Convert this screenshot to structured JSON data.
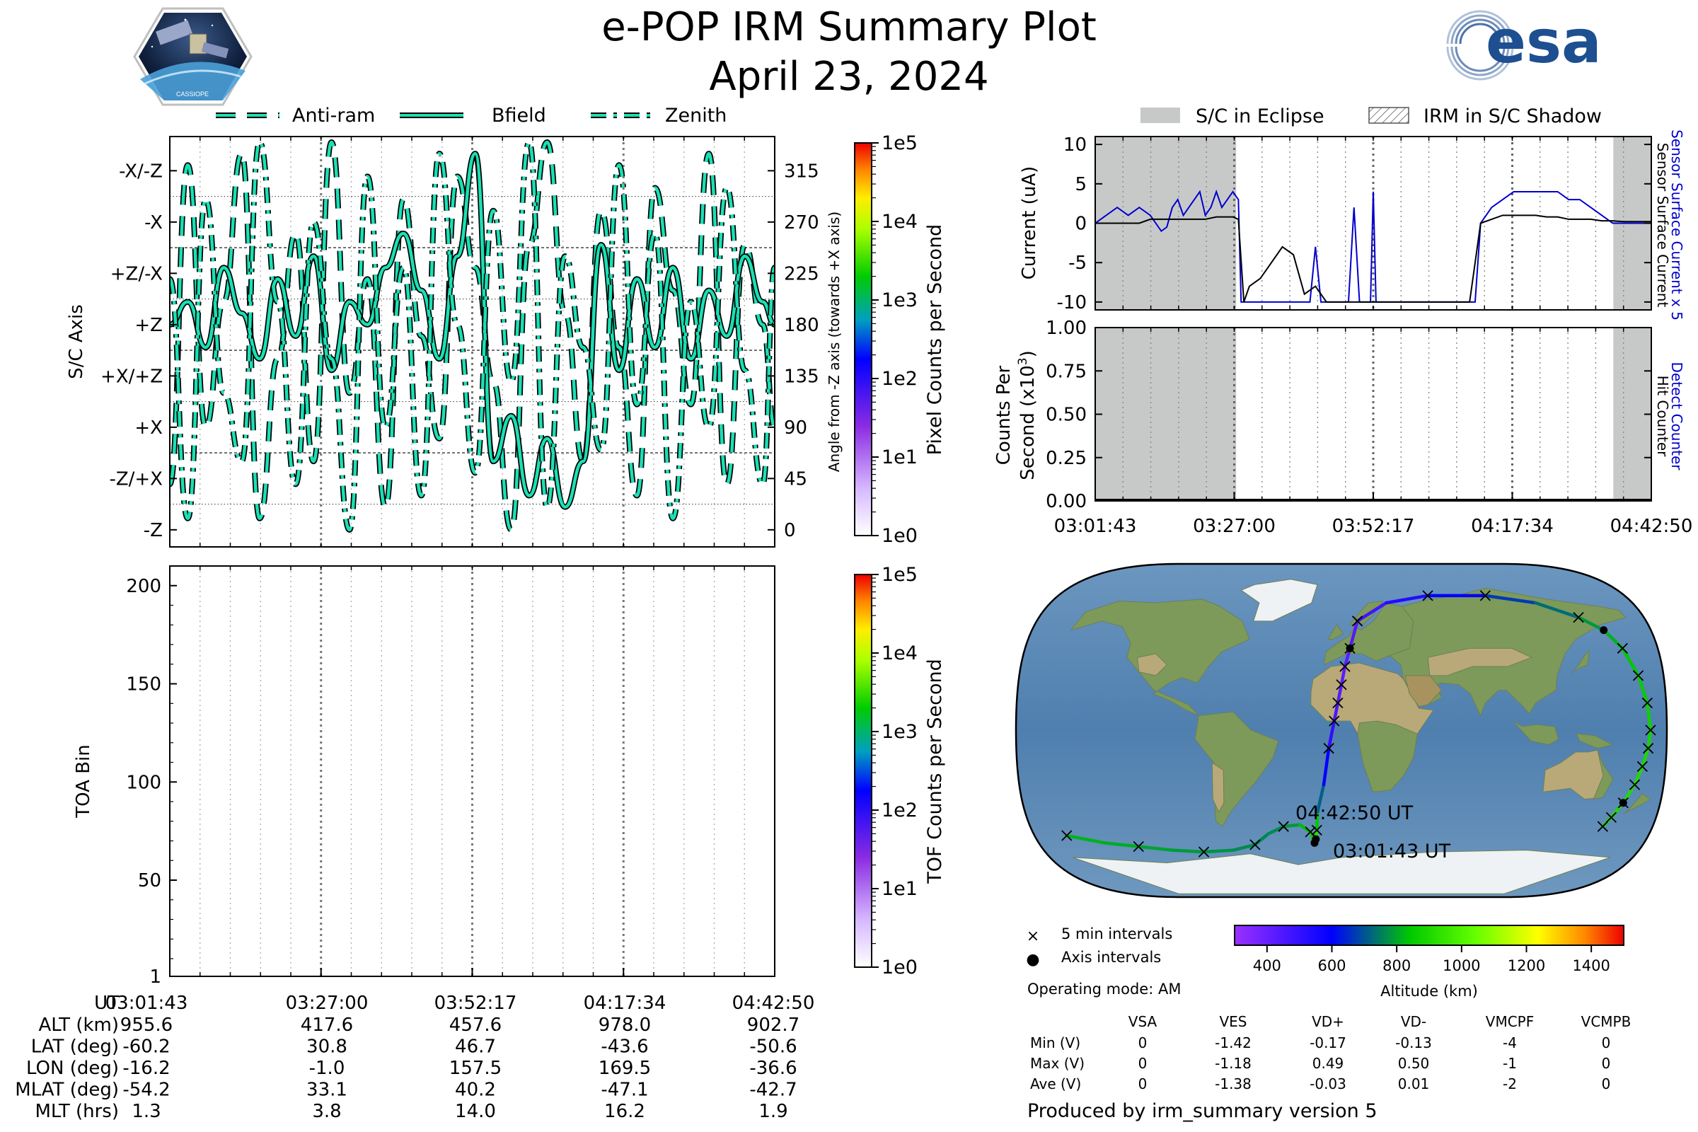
{
  "header": {
    "title": "e-POP IRM Summary Plot",
    "date": "April 23, 2024",
    "left_logo_text": "CASSIOPE",
    "right_logo_text": "esa"
  },
  "time_ticks": [
    "03:01:43",
    "03:27:00",
    "03:52:17",
    "04:17:34",
    "04:42:50"
  ],
  "chart_data": [
    {
      "id": "pixel-panel",
      "type": "line",
      "legend": [
        "Anti-ram",
        "Bfield",
        "Zenith"
      ],
      "legend_placement": "top",
      "ylabel": "S/C Axis",
      "yticklabels_left": [
        "-X/-Z",
        "-X",
        "+Z/-X",
        "+Z",
        "+X/+Z",
        "+X",
        "-Z/+X",
        "-Z"
      ],
      "ylabel_right": "Angle from -Z axis (towards +X axis)",
      "yticklabels_right": [
        "315",
        "270",
        "225",
        "180",
        "135",
        "90",
        "45",
        "0"
      ],
      "ylim": [
        -15,
        345
      ],
      "colorbar": {
        "label": "Pixel Counts per Second",
        "ticks": [
          "1e5",
          "1e4",
          "1e3",
          "1e2",
          "1e1",
          "1e0"
        ]
      },
      "series": [
        {
          "name": "Anti-ram",
          "x": [
            0,
            3,
            6,
            9,
            12,
            15,
            18,
            21,
            24,
            27,
            30,
            33,
            36,
            39,
            42,
            45,
            48,
            51,
            54,
            57,
            60,
            63,
            66,
            69,
            72,
            75,
            78,
            81,
            84,
            87,
            90,
            93,
            96,
            99,
            101
          ],
          "values": [
            40,
            320,
            90,
            200,
            330,
            10,
            150,
            260,
            60,
            340,
            120,
            220,
            20,
            290,
            170,
            80,
            310,
            230,
            130,
            0,
            250,
            340,
            190,
            60,
            280,
            160,
            30,
            300,
            210,
            110,
            330,
            40,
            250,
            180,
            90
          ]
        },
        {
          "name": "Bfield",
          "x": [
            0,
            3,
            6,
            9,
            12,
            15,
            18,
            21,
            24,
            27,
            30,
            33,
            36,
            39,
            42,
            45,
            48,
            51,
            54,
            57,
            60,
            63,
            66,
            69,
            72,
            75,
            78,
            81,
            84,
            87,
            90,
            93,
            96,
            99,
            101
          ],
          "values": [
            180,
            200,
            160,
            230,
            190,
            150,
            220,
            170,
            240,
            140,
            200,
            180,
            230,
            260,
            210,
            150,
            240,
            330,
            60,
            100,
            30,
            80,
            20,
            60,
            250,
            140,
            220,
            160,
            230,
            150,
            210,
            170,
            240,
            200,
            180
          ]
        },
        {
          "name": "Zenith",
          "x": [
            0,
            3,
            6,
            9,
            12,
            15,
            18,
            21,
            24,
            27,
            30,
            33,
            36,
            39,
            42,
            45,
            48,
            51,
            54,
            57,
            60,
            63,
            66,
            69,
            72,
            75,
            78,
            81,
            84,
            87,
            90,
            93,
            96,
            99,
            101
          ],
          "values": [
            220,
            10,
            290,
            120,
            60,
            340,
            200,
            40,
            270,
            150,
            0,
            310,
            90,
            230,
            30,
            330,
            180,
            50,
            280,
            130,
            340,
            20,
            240,
            160,
            70,
            320,
            110,
            260,
            10,
            200,
            90,
            300,
            140,
            40,
            230
          ]
        }
      ]
    },
    {
      "id": "tof-panel",
      "type": "heatmap",
      "ylabel": "TOA Bin",
      "yticks": [
        1,
        50,
        100,
        150,
        200
      ],
      "ylim": [
        1,
        210
      ],
      "colorbar": {
        "label": "TOF Counts per Second",
        "ticks": [
          "1e5",
          "1e4",
          "1e3",
          "1e2",
          "1e1",
          "1e0"
        ]
      },
      "values": []
    },
    {
      "id": "current-panel",
      "type": "line",
      "legend": [
        "S/C in Eclipse",
        "IRM in S/C Shadow"
      ],
      "legend_placement": "top",
      "ylabel": "Current (uA)",
      "ylabel_right_blue": "Sensor Surface Current x 5",
      "ylabel_right_black": "Sensor Surface Current",
      "yticks": [
        10,
        5,
        0,
        -5,
        -10
      ],
      "ylim": [
        -11,
        11
      ],
      "eclipse": [
        [
          0,
          25.6
        ],
        [
          94.1,
          101
        ]
      ],
      "series": [
        {
          "name": "Sensor Surface Current x 5",
          "color": "#0000cc",
          "x": [
            0,
            2,
            4,
            6,
            8,
            10,
            12,
            13,
            14,
            15,
            16,
            17,
            18,
            19,
            20,
            21,
            22,
            23,
            24,
            25,
            26,
            26.5,
            27,
            28,
            30,
            32,
            34,
            36,
            38,
            39,
            40,
            41,
            42,
            43,
            44,
            45,
            46,
            47,
            48,
            49,
            50,
            50.5,
            51,
            52,
            54,
            56,
            58,
            60,
            62,
            64,
            65,
            66,
            67,
            68,
            69,
            70,
            72,
            74,
            76,
            78,
            80,
            82,
            84,
            86,
            88,
            90,
            92,
            94,
            96,
            98,
            100,
            101
          ],
          "values": [
            0,
            1,
            2,
            1,
            2,
            1,
            -1,
            -0.5,
            2,
            3,
            1,
            2,
            3,
            4,
            1,
            2,
            4,
            2,
            3,
            4,
            3,
            -10,
            -10,
            -10,
            -10,
            -10,
            -10,
            -10,
            -10,
            -10,
            -3,
            -10,
            -10,
            -10,
            -10,
            -10,
            -10,
            2,
            -10,
            -10,
            -10,
            4,
            -10,
            -10,
            -10,
            -10,
            -10,
            -10,
            -10,
            -10,
            -10,
            -10,
            -10,
            -10,
            -10,
            0,
            2,
            3,
            4,
            4,
            4,
            4,
            4,
            3,
            3,
            2,
            1,
            0,
            0,
            0,
            0,
            0
          ]
        },
        {
          "name": "Sensor Surface Current",
          "color": "#000000",
          "x": [
            0,
            2,
            4,
            6,
            8,
            10,
            12,
            14,
            16,
            18,
            20,
            22,
            24,
            25,
            26,
            27,
            28,
            30,
            32,
            34,
            36,
            38,
            40,
            42,
            44,
            46,
            48,
            50,
            52,
            54,
            56,
            58,
            60,
            62,
            64,
            66,
            68,
            70,
            72,
            74,
            76,
            78,
            80,
            82,
            84,
            86,
            88,
            90,
            92,
            94,
            96,
            98,
            100,
            101
          ],
          "values": [
            0,
            0,
            0,
            0,
            0,
            0.5,
            0.5,
            0.5,
            0.5,
            0.5,
            0.5,
            0.8,
            0.8,
            0.8,
            0.5,
            -10,
            -8,
            -7,
            -5,
            -3,
            -4,
            -9,
            -8,
            -10,
            -10,
            -10,
            -10,
            -10,
            -10,
            -10,
            -10,
            -10,
            -10,
            -10,
            -10,
            -10,
            -10,
            0,
            0.5,
            1,
            1,
            1,
            1,
            0.8,
            0.8,
            0.5,
            0.5,
            0.5,
            0.3,
            0.3,
            0.2,
            0.2,
            0.2,
            0.2
          ]
        }
      ]
    },
    {
      "id": "counts-panel",
      "type": "line",
      "ylabel": "Counts Per Second (x10^3)",
      "ylabel_right_blue": "Detect Counter",
      "ylabel_right_black": "Hit Counter",
      "yticks": [
        "1.00",
        "0.75",
        "0.50",
        "0.25",
        "0.00"
      ],
      "ylim": [
        0,
        1
      ],
      "eclipse": [
        [
          0,
          25.6
        ],
        [
          94.1,
          101
        ]
      ],
      "series": [
        {
          "name": "Detect Counter",
          "color": "#0000cc",
          "x": [
            0,
            101
          ],
          "values": [
            0,
            0
          ]
        },
        {
          "name": "Hit Counter",
          "color": "#000000",
          "x": [
            0,
            101
          ],
          "values": [
            0,
            0
          ]
        }
      ]
    }
  ],
  "map": {
    "legend": [
      {
        "marker": "×",
        "label": "5 min intervals"
      },
      {
        "marker": "●",
        "label": "Axis intervals"
      }
    ],
    "operating_mode": "Operating mode: AM",
    "start_label": "03:01:43 UT",
    "end_label": "04:42:50 UT",
    "colorbar": {
      "label": "Altitude (km)",
      "ticks": [
        "400",
        "600",
        "800",
        "1000",
        "1200",
        "1400"
      ],
      "range": [
        300,
        1500
      ]
    },
    "track_lon": [
      -170,
      -150,
      -130,
      -110,
      -90,
      -70,
      -55,
      -45,
      -35,
      -25,
      -19,
      -17,
      -16,
      -15,
      -14,
      -10,
      -7,
      -4,
      -2,
      0,
      2,
      5,
      10,
      30,
      60,
      100,
      130,
      150,
      160,
      165,
      168,
      170,
      171,
      170,
      168,
      166,
      163,
      160,
      158
    ],
    "track_lat": [
      -58,
      -62,
      -64,
      -66,
      -67,
      -66,
      -63,
      -57,
      -53,
      -52,
      -56,
      -62,
      -60,
      -55,
      -45,
      -30,
      -10,
      5,
      15,
      25,
      35,
      45,
      60,
      70,
      74,
      74,
      70,
      62,
      55,
      45,
      30,
      15,
      0,
      -10,
      -20,
      -30,
      -40,
      -48,
      -53
    ],
    "track_alt": [
      820,
      810,
      800,
      790,
      780,
      770,
      760,
      760,
      770,
      800,
      850,
      900,
      955,
      900,
      780,
      650,
      540,
      480,
      440,
      420,
      418,
      430,
      450,
      500,
      560,
      640,
      700,
      760,
      800,
      830,
      850,
      860,
      880,
      890,
      900,
      905,
      905,
      903,
      902
    ]
  },
  "info_table": {
    "row_header": "UT",
    "rows": [
      {
        "label": "ALT (km)",
        "values": [
          "955.6",
          "417.6",
          "457.6",
          "978.0",
          "902.7"
        ]
      },
      {
        "label": "LAT (deg)",
        "values": [
          "-60.2",
          "30.8",
          "46.7",
          "-43.6",
          "-50.6"
        ]
      },
      {
        "label": "LON (deg)",
        "values": [
          "-16.2",
          "-1.0",
          "157.5",
          "169.5",
          "-36.6"
        ]
      },
      {
        "label": "MLAT (deg)",
        "values": [
          "-54.2",
          "33.1",
          "40.2",
          "-47.1",
          "-42.7"
        ]
      },
      {
        "label": "MLT (hrs)",
        "values": [
          "1.3",
          "3.8",
          "14.0",
          "16.2",
          "1.9"
        ]
      }
    ]
  },
  "voltage_table": {
    "columns": [
      "VSA",
      "VES",
      "VD+",
      "VD-",
      "VMCPF",
      "VCMPB"
    ],
    "rows": [
      {
        "label": "Min (V)",
        "values": [
          "0",
          "-1.42",
          "-0.17",
          "-0.13",
          "-4",
          "0"
        ]
      },
      {
        "label": "Max (V)",
        "values": [
          "0",
          "-1.18",
          "0.49",
          "0.50",
          "-1",
          "0"
        ]
      },
      {
        "label": "Ave (V)",
        "values": [
          "0",
          "-1.38",
          "-0.03",
          "0.01",
          "-2",
          "0"
        ]
      }
    ]
  },
  "footer": "Produced by irm_summary version 5",
  "colors": {
    "trace": "#19e0b4",
    "eclipse": "#c7c9c9",
    "blue_trace": "#0000cc",
    "ocean": "#5f8db4",
    "land": "#8fa36b"
  }
}
